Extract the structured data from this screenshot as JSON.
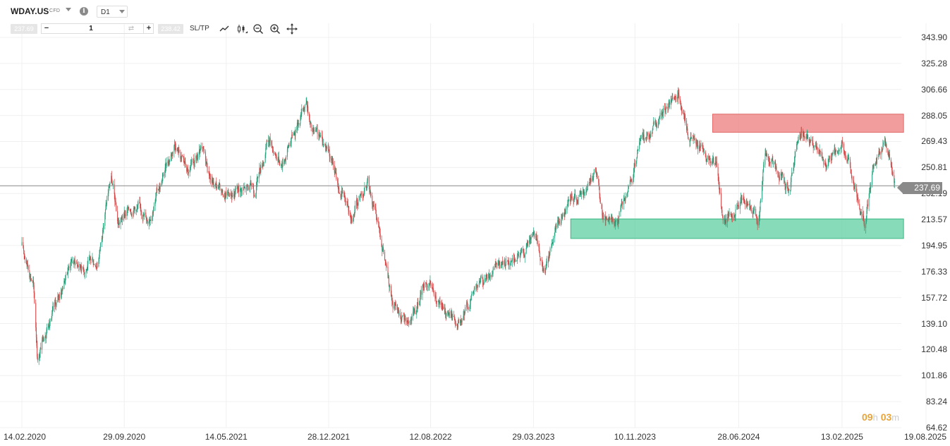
{
  "header": {
    "symbol": "WDAY.US",
    "instrument_type": "CFD",
    "timeframe": "D1",
    "sell_price": "237.69",
    "buy_price": "238.42",
    "quantity": "1",
    "sltp_label": "SL/TP"
  },
  "icons": {
    "info": "info-icon",
    "chart_type": "line-chart-icon",
    "candles": "candlestick-icon",
    "zoom_out": "zoom-out-icon",
    "zoom_in": "zoom-in-icon",
    "crosshair": "crosshair-move-icon"
  },
  "price_axis": {
    "labels": [
      "343.90",
      "325.28",
      "306.66",
      "288.05",
      "269.43",
      "250.81",
      "232.19",
      "213.57",
      "194.95",
      "176.33",
      "157.72",
      "139.10",
      "120.48",
      "101.86",
      "83.24",
      "64.62"
    ],
    "current_price": "237.69"
  },
  "time_axis": {
    "labels": [
      "14.02.2020",
      "29.09.2020",
      "14.05.2021",
      "28.12.2021",
      "12.08.2022",
      "29.03.2023",
      "10.11.2023",
      "28.06.2024",
      "13.02.2025",
      "19.08.2025"
    ]
  },
  "timer": {
    "hours": "09",
    "hours_unit": "h",
    "minutes": "03",
    "minutes_unit": "m"
  },
  "colors": {
    "bull": "#26a17b",
    "bear": "#d64545",
    "resistance_zone": "#f08c8c",
    "support_zone": "#5fcfa0",
    "grid": "#f0f0f0",
    "price_line": "#888888",
    "timer": "#e8a33a"
  },
  "chart_data": {
    "type": "candlestick",
    "symbol": "WDAY.US",
    "timeframe": "D1",
    "y_range": [
      64.62,
      343.9
    ],
    "x_range": [
      "14.02.2020",
      "19.08.2025"
    ],
    "current_price": 237.69,
    "zones": [
      {
        "name": "resistance",
        "y_low": 276,
        "y_high": 289,
        "x_start": "2024-05-01",
        "x_end": "2025-06-30"
      },
      {
        "name": "support",
        "y_low": 200,
        "y_high": 214,
        "x_start": "2023-06-20",
        "x_end": "2025-06-30"
      }
    ],
    "close_path": [
      {
        "d": "2020-02-14",
        "v": 195
      },
      {
        "d": "2020-03-10",
        "v": 170
      },
      {
        "d": "2020-03-20",
        "v": 115
      },
      {
        "d": "2020-04-10",
        "v": 140
      },
      {
        "d": "2020-05-01",
        "v": 152
      },
      {
        "d": "2020-06-01",
        "v": 185
      },
      {
        "d": "2020-07-01",
        "v": 180
      },
      {
        "d": "2020-08-01",
        "v": 185
      },
      {
        "d": "2020-08-30",
        "v": 245
      },
      {
        "d": "2020-09-15",
        "v": 210
      },
      {
        "d": "2020-10-20",
        "v": 225
      },
      {
        "d": "2020-11-20",
        "v": 215
      },
      {
        "d": "2020-12-20",
        "v": 240
      },
      {
        "d": "2021-01-20",
        "v": 270
      },
      {
        "d": "2021-02-20",
        "v": 245
      },
      {
        "d": "2021-03-20",
        "v": 260
      },
      {
        "d": "2021-04-15",
        "v": 240
      },
      {
        "d": "2021-05-10",
        "v": 230
      },
      {
        "d": "2021-06-10",
        "v": 235
      },
      {
        "d": "2021-07-15",
        "v": 235
      },
      {
        "d": "2021-08-15",
        "v": 270
      },
      {
        "d": "2021-09-15",
        "v": 255
      },
      {
        "d": "2021-10-10",
        "v": 275
      },
      {
        "d": "2021-11-08",
        "v": 300
      },
      {
        "d": "2021-11-20",
        "v": 275
      },
      {
        "d": "2021-12-28",
        "v": 265
      },
      {
        "d": "2022-01-20",
        "v": 235
      },
      {
        "d": "2022-02-20",
        "v": 220
      },
      {
        "d": "2022-03-25",
        "v": 240
      },
      {
        "d": "2022-04-25",
        "v": 200
      },
      {
        "d": "2022-05-20",
        "v": 150
      },
      {
        "d": "2022-06-15",
        "v": 140
      },
      {
        "d": "2022-07-10",
        "v": 145
      },
      {
        "d": "2022-08-01",
        "v": 170
      },
      {
        "d": "2022-08-30",
        "v": 150
      },
      {
        "d": "2022-10-01",
        "v": 145
      },
      {
        "d": "2022-10-20",
        "v": 140
      },
      {
        "d": "2022-11-20",
        "v": 165
      },
      {
        "d": "2023-01-01",
        "v": 175
      },
      {
        "d": "2023-02-01",
        "v": 185
      },
      {
        "d": "2023-03-01",
        "v": 190
      },
      {
        "d": "2023-03-29",
        "v": 200
      },
      {
        "d": "2023-04-25",
        "v": 180
      },
      {
        "d": "2023-05-20",
        "v": 210
      },
      {
        "d": "2023-06-20",
        "v": 225
      },
      {
        "d": "2023-07-20",
        "v": 235
      },
      {
        "d": "2023-08-15",
        "v": 250
      },
      {
        "d": "2023-09-01",
        "v": 215
      },
      {
        "d": "2023-09-30",
        "v": 210
      },
      {
        "d": "2023-10-31",
        "v": 235
      },
      {
        "d": "2023-11-20",
        "v": 265
      },
      {
        "d": "2023-12-20",
        "v": 280
      },
      {
        "d": "2024-01-20",
        "v": 295
      },
      {
        "d": "2024-02-20",
        "v": 300
      },
      {
        "d": "2024-03-10",
        "v": 270
      },
      {
        "d": "2024-04-10",
        "v": 265
      },
      {
        "d": "2024-05-10",
        "v": 250
      },
      {
        "d": "2024-05-25",
        "v": 210
      },
      {
        "d": "2024-06-28",
        "v": 225
      },
      {
        "d": "2024-07-15",
        "v": 230
      },
      {
        "d": "2024-08-10",
        "v": 210
      },
      {
        "d": "2024-08-25",
        "v": 262
      },
      {
        "d": "2024-09-25",
        "v": 248
      },
      {
        "d": "2024-10-20",
        "v": 240
      },
      {
        "d": "2024-11-15",
        "v": 280
      },
      {
        "d": "2024-12-10",
        "v": 265
      },
      {
        "d": "2025-01-10",
        "v": 250
      },
      {
        "d": "2025-02-13",
        "v": 268
      },
      {
        "d": "2025-03-10",
        "v": 240
      },
      {
        "d": "2025-04-05",
        "v": 212
      },
      {
        "d": "2025-04-25",
        "v": 250
      },
      {
        "d": "2025-05-20",
        "v": 272
      },
      {
        "d": "2025-06-10",
        "v": 237.69
      }
    ]
  }
}
